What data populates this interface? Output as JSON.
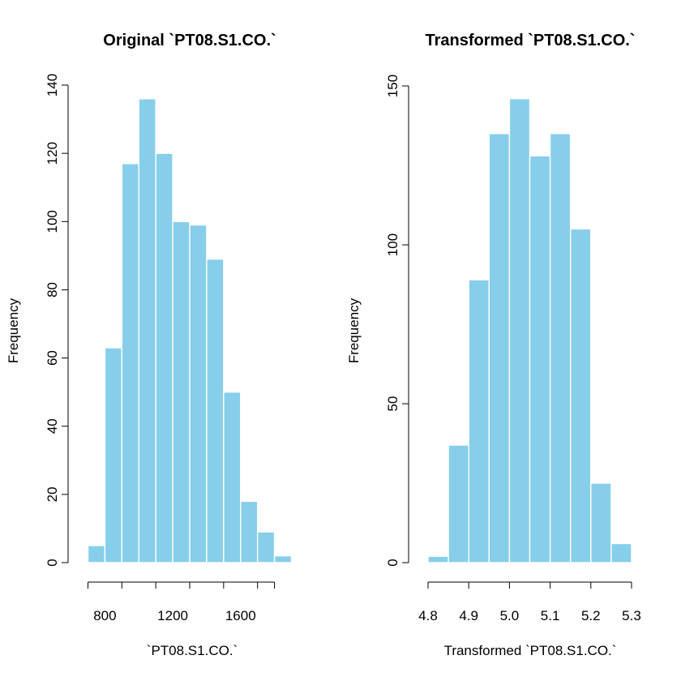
{
  "chart_data": [
    {
      "type": "bar",
      "title": "Original `PT08.S1.CO.`",
      "xlabel": "`PT08.S1.CO.`",
      "ylabel": "Frequency",
      "bar_color": "#87CEEB",
      "bin_edges": [
        700,
        800,
        900,
        1000,
        1100,
        1200,
        1300,
        1400,
        1500,
        1600,
        1700,
        1800,
        1900
      ],
      "values": [
        5,
        63,
        117,
        136,
        120,
        100,
        99,
        89,
        50,
        18,
        9,
        2
      ],
      "xlim": [
        700,
        1900
      ],
      "ylim": [
        0,
        140
      ],
      "x_ticks": [
        700,
        900,
        1100,
        1300,
        1500,
        1700,
        1800
      ],
      "x_tick_labels": [
        "800",
        "1200",
        "1600"
      ],
      "x_tick_label_values": [
        800,
        1200,
        1600
      ],
      "y_ticks": [
        0,
        20,
        40,
        60,
        80,
        100,
        120,
        140
      ],
      "y_tick_labels": [
        "0",
        "20",
        "40",
        "60",
        "80",
        "100",
        "120",
        "140"
      ]
    },
    {
      "type": "bar",
      "title": "Transformed `PT08.S1.CO.`",
      "xlabel": "Transformed `PT08.S1.CO.`",
      "ylabel": "Frequency",
      "bar_color": "#87CEEB",
      "bin_edges": [
        4.8,
        4.85,
        4.9,
        4.95,
        5.0,
        5.05,
        5.1,
        5.15,
        5.2,
        5.25,
        5.3
      ],
      "values": [
        2,
        37,
        89,
        135,
        146,
        128,
        135,
        105,
        25,
        6
      ],
      "xlim": [
        4.8,
        5.3
      ],
      "ylim": [
        0,
        150
      ],
      "x_ticks": [
        4.8,
        4.9,
        5.0,
        5.1,
        5.2,
        5.3
      ],
      "x_tick_labels": [
        "4.8",
        "4.9",
        "5.0",
        "5.1",
        "5.2",
        "5.3"
      ],
      "x_tick_label_values": [
        4.8,
        4.9,
        5.0,
        5.1,
        5.2,
        5.3
      ],
      "y_ticks": [
        0,
        50,
        100,
        150
      ],
      "y_tick_labels": [
        "0",
        "50",
        "100",
        "150"
      ]
    }
  ]
}
